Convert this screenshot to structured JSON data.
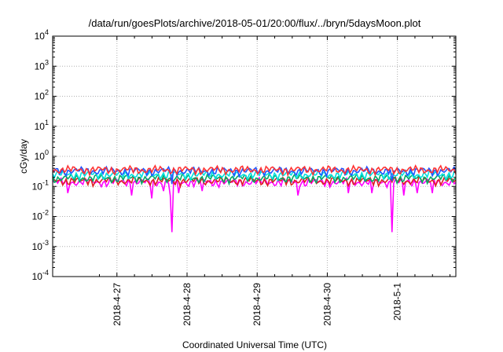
{
  "chart_data": {
    "type": "line",
    "title": "/data/run/goesPlots/archive/2018-05-01/20:00/flux/../bryn/5daysMoon.plot",
    "xlabel": "Coordinated Universal Time (UTC)",
    "ylabel": "cGy/day",
    "yscale": "log",
    "ylim": [
      0.0001,
      10000
    ],
    "y_ticks": [
      {
        "base": "10",
        "exp": "4",
        "value": 10000
      },
      {
        "base": "10",
        "exp": "3",
        "value": 1000
      },
      {
        "base": "10",
        "exp": "2",
        "value": 100
      },
      {
        "base": "10",
        "exp": "1",
        "value": 10
      },
      {
        "base": "10",
        "exp": "0",
        "value": 1
      },
      {
        "base": "10",
        "exp": "-1",
        "value": 0.1
      },
      {
        "base": "10",
        "exp": "-2",
        "value": 0.01
      },
      {
        "base": "10",
        "exp": "-3",
        "value": 0.001
      },
      {
        "base": "10",
        "exp": "-4",
        "value": 0.0001
      }
    ],
    "xlim": [
      "2018-04-26 02:00",
      "2018-05-01 20:00"
    ],
    "x_ticks": [
      "2018-4-27",
      "2018-4-28",
      "2018-4-29",
      "2018-4-30",
      "2018-5-1"
    ],
    "grid": true,
    "series": [
      {
        "color": "#ff00ff",
        "base": 0.14,
        "dips": [
          [
            "2018-04-26 07:00",
            0.06
          ],
          [
            "2018-04-27 05:00",
            0.05
          ],
          [
            "2018-04-27 12:00",
            0.04
          ],
          [
            "2018-04-27 16:00",
            0.07
          ],
          [
            "2018-04-27 18:00",
            0.05
          ],
          [
            "2018-04-27 19:00",
            0.003
          ],
          [
            "2018-04-27 21:00",
            0.06
          ],
          [
            "2018-04-28 05:00",
            0.07
          ],
          [
            "2018-04-29 14:00",
            0.05
          ],
          [
            "2018-04-30 07:00",
            0.06
          ],
          [
            "2018-04-30 15:00",
            0.06
          ],
          [
            "2018-04-30 22:00",
            0.003
          ],
          [
            "2018-05-01 02:00",
            0.05
          ],
          [
            "2018-05-01 07:00",
            0.06
          ],
          [
            "2018-05-01 12:00",
            0.06
          ]
        ]
      },
      {
        "color": "#dd2222",
        "base": 0.155,
        "dips": []
      },
      {
        "color": "#00aa66",
        "base": 0.19,
        "dips": []
      },
      {
        "color": "#00e0e0",
        "base": 0.25,
        "dips": []
      },
      {
        "color": "#2255ff",
        "base": 0.33,
        "dips": [
          [
            "2018-04-27 19:00",
            0.12
          ],
          [
            "2018-04-30 22:00",
            0.15
          ]
        ]
      },
      {
        "color": "#ff3333",
        "base": 0.36,
        "dips": []
      }
    ]
  }
}
